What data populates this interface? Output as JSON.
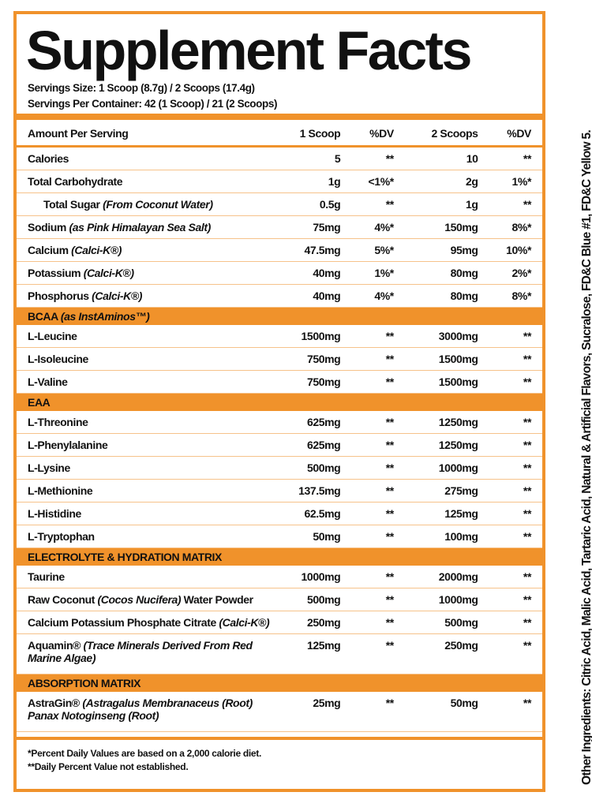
{
  "title": "Supplement Facts",
  "serving_size": "Servings Size: 1 Scoop (8.7g) / 2 Scoops (17.4g)",
  "servings_per_container": "Servings Per Container: 42 (1 Scoop) / 21 (2 Scoops)",
  "header": {
    "label": "Amount Per Serving",
    "c1": "1 Scoop",
    "c2": "%DV",
    "c3": "2 Scoops",
    "c4": "%DV"
  },
  "rows": [
    {
      "name": "Calories",
      "sub": "",
      "v1": "5",
      "d1": "**",
      "v2": "10",
      "d2": "**"
    },
    {
      "name": "Total Carbohydrate",
      "sub": "",
      "v1": "1g",
      "d1": "<1%*",
      "v2": "2g",
      "d2": "1%*"
    },
    {
      "name": "Total Sugar",
      "sub": "(From Coconut Water)",
      "v1": "0.5g",
      "d1": "**",
      "v2": "1g",
      "d2": "**"
    },
    {
      "name": "Sodium",
      "sub": "(as Pink Himalayan Sea Salt)",
      "v1": "75mg",
      "d1": "4%*",
      "v2": "150mg",
      "d2": "8%*"
    },
    {
      "name": "Calcium",
      "sub": "(Calci-K®)",
      "v1": "47.5mg",
      "d1": "5%*",
      "v2": "95mg",
      "d2": "10%*"
    },
    {
      "name": "Potassium",
      "sub": "(Calci-K®)",
      "v1": "40mg",
      "d1": "1%*",
      "v2": "80mg",
      "d2": "2%*"
    },
    {
      "name": "Phosphorus",
      "sub": "(Calci-K®)",
      "v1": "40mg",
      "d1": "4%*",
      "v2": "80mg",
      "d2": "8%*"
    }
  ],
  "sections": [
    {
      "title": "BCAA",
      "title_sub": "(as InstAminos™)",
      "rows": [
        {
          "name": "L-Leucine",
          "v1": "1500mg",
          "d1": "**",
          "v2": "3000mg",
          "d2": "**"
        },
        {
          "name": "L-Isoleucine",
          "v1": "750mg",
          "d1": "**",
          "v2": "1500mg",
          "d2": "**"
        },
        {
          "name": "L-Valine",
          "v1": "750mg",
          "d1": "**",
          "v2": "1500mg",
          "d2": "**"
        }
      ]
    },
    {
      "title": "EAA",
      "rows": [
        {
          "name": "L-Threonine",
          "v1": "625mg",
          "d1": "**",
          "v2": "1250mg",
          "d2": "**"
        },
        {
          "name": "L-Phenylalanine",
          "v1": "625mg",
          "d1": "**",
          "v2": "1250mg",
          "d2": "**"
        },
        {
          "name": "L-Lysine",
          "v1": "500mg",
          "d1": "**",
          "v2": "1000mg",
          "d2": "**"
        },
        {
          "name": "L-Methionine",
          "v1": "137.5mg",
          "d1": "**",
          "v2": "275mg",
          "d2": "**"
        },
        {
          "name": "L-Histidine",
          "v1": "62.5mg",
          "d1": "**",
          "v2": "125mg",
          "d2": "**"
        },
        {
          "name": "L-Tryptophan",
          "v1": "50mg",
          "d1": "**",
          "v2": "100mg",
          "d2": "**"
        }
      ]
    },
    {
      "title": "ELECTROLYTE & HYDRATION MATRIX",
      "rows": [
        {
          "name": "Taurine",
          "sub": "",
          "after": "",
          "v1": "1000mg",
          "d1": "**",
          "v2": "2000mg",
          "d2": "**"
        },
        {
          "name": "Raw Coconut",
          "sub": "(Cocos Nucifera)",
          "after": " Water Powder",
          "v1": "500mg",
          "d1": "**",
          "v2": "1000mg",
          "d2": "**"
        },
        {
          "name": "Calcium Potassium Phosphate Citrate",
          "sub": "(Calci-K®)",
          "after": "",
          "v1": "250mg",
          "d1": "**",
          "v2": "500mg",
          "d2": "**"
        },
        {
          "name": "Aquamin®",
          "sub": "(Trace Minerals Derived From Red Marine Algae)",
          "after": "",
          "v1": "125mg",
          "d1": "**",
          "v2": "250mg",
          "d2": "**"
        }
      ]
    },
    {
      "title": "ABSORPTION MATRIX",
      "rows": [
        {
          "name": "AstraGin®",
          "sub": "(Astragalus Membranaceus (Root) Panax Notoginseng (Root)",
          "after": "",
          "v1": "25mg",
          "d1": "**",
          "v2": "50mg",
          "d2": "**"
        }
      ]
    }
  ],
  "footnotes": [
    "*Percent Daily Values are based on a 2,000 calorie diet.",
    "**Daily Percent Value not established."
  ],
  "other_ingredients": "Other Ingredients: Citric Acid, Malic Acid, Tartaric Acid, Natural & Artificial Flavors, Sucralose, FD&C Blue #1, FD&C Yellow 5.",
  "colors": {
    "accent": "#f0922b"
  }
}
